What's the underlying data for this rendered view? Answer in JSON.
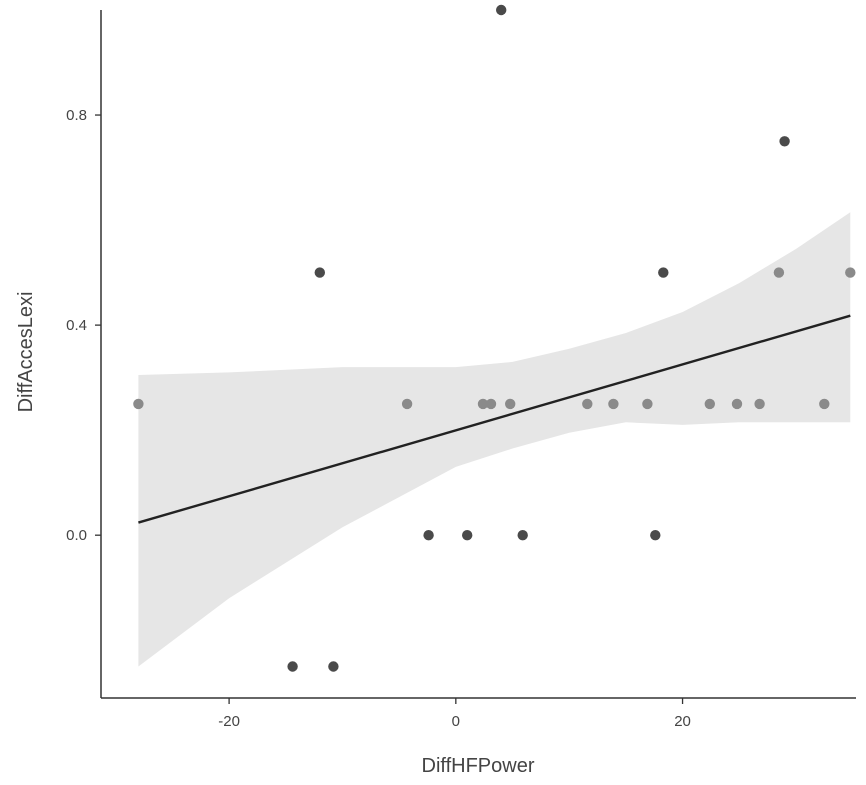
{
  "chart_data": {
    "type": "scatter",
    "title": "",
    "xlabel": "DiffHFPower",
    "ylabel": "DiffAccesLexi",
    "xlim": [
      -31.3,
      35.3
    ],
    "ylim": [
      -0.31,
      1.0
    ],
    "x_ticks": [
      -20,
      0,
      20
    ],
    "x_tick_labels": [
      "-20",
      "0",
      "20"
    ],
    "y_ticks": [
      0.0,
      0.4,
      0.8
    ],
    "y_tick_labels": [
      "0.0",
      "0.4",
      "0.8"
    ],
    "grid": false,
    "legend": "none",
    "colors": {
      "point": "#4a4a4a",
      "point_light": "#8a8a8a",
      "line": "#222222",
      "band": "#e6e6e6",
      "axis": "#333333"
    },
    "points": [
      {
        "x": -28.0,
        "y": 0.25
      },
      {
        "x": 4.0,
        "y": 1.0
      },
      {
        "x": 29.0,
        "y": 0.75
      },
      {
        "x": -12.0,
        "y": 0.5
      },
      {
        "x": 18.3,
        "y": 0.5
      },
      {
        "x": 28.5,
        "y": 0.5
      },
      {
        "x": 34.8,
        "y": 0.5
      },
      {
        "x": -4.3,
        "y": 0.25
      },
      {
        "x": 2.4,
        "y": 0.25
      },
      {
        "x": 3.1,
        "y": 0.25
      },
      {
        "x": 4.8,
        "y": 0.25
      },
      {
        "x": 11.6,
        "y": 0.25
      },
      {
        "x": 13.9,
        "y": 0.25
      },
      {
        "x": 16.9,
        "y": 0.25
      },
      {
        "x": 22.4,
        "y": 0.25
      },
      {
        "x": 24.8,
        "y": 0.25
      },
      {
        "x": 26.8,
        "y": 0.25
      },
      {
        "x": 32.5,
        "y": 0.25
      },
      {
        "x": -2.4,
        "y": 0.0
      },
      {
        "x": 1.0,
        "y": 0.0
      },
      {
        "x": 5.9,
        "y": 0.0
      },
      {
        "x": 17.6,
        "y": 0.0
      },
      {
        "x": -14.4,
        "y": -0.25
      },
      {
        "x": -10.8,
        "y": -0.25
      }
    ],
    "fit": {
      "x": [
        -28.0,
        34.8
      ],
      "y": [
        0.024,
        0.418
      ]
    },
    "confidence_band": {
      "x": [
        -28.0,
        -20.0,
        -10.0,
        0.0,
        5.0,
        10.0,
        15.0,
        20.0,
        25.0,
        30.0,
        34.8
      ],
      "lower": [
        -0.25,
        -0.12,
        0.015,
        0.13,
        0.165,
        0.195,
        0.215,
        0.21,
        0.215,
        0.215,
        0.215
      ],
      "upper": [
        0.305,
        0.31,
        0.32,
        0.32,
        0.33,
        0.355,
        0.385,
        0.425,
        0.48,
        0.545,
        0.615
      ]
    }
  }
}
